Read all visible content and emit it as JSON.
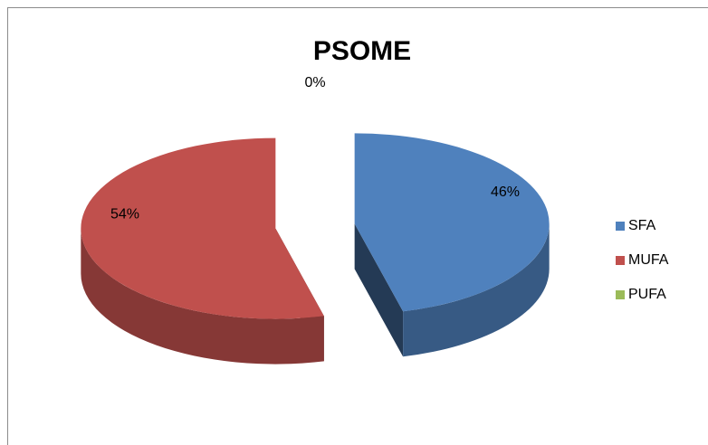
{
  "chart_data": {
    "type": "pie",
    "title": "PSOME",
    "categories": [
      "SFA",
      "MUFA",
      "PUFA"
    ],
    "values": [
      46,
      54,
      0
    ],
    "value_labels": [
      "46%",
      "54%",
      "0%"
    ],
    "colors": [
      "#4f81bd",
      "#c0504d",
      "#9bbb59"
    ],
    "legend": "right"
  }
}
